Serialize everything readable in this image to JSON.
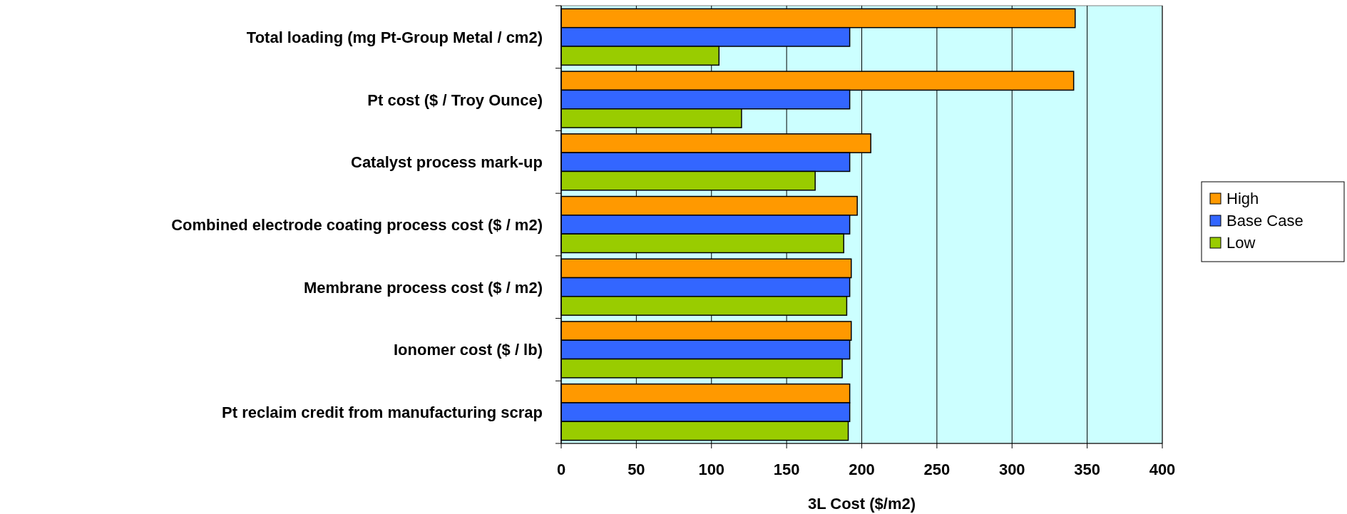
{
  "chart_data": {
    "type": "bar",
    "orientation": "horizontal",
    "xlabel": "3L Cost ($/m2)",
    "categories": [
      "Total loading (mg Pt-Group Metal / cm2)",
      "Pt cost ($ / Troy Ounce)",
      "Catalyst process mark-up",
      "Combined electrode coating process cost ($ / m2)",
      "Membrane process cost ($ / m2)",
      "Ionomer cost ($ / lb)",
      "Pt reclaim credit from manufacturing scrap"
    ],
    "series": [
      {
        "name": "High",
        "color": "#ff9900",
        "values": [
          342,
          341,
          206,
          197,
          193,
          193,
          192
        ]
      },
      {
        "name": "Base Case",
        "color": "#3366ff",
        "values": [
          192,
          192,
          192,
          192,
          192,
          192,
          192
        ]
      },
      {
        "name": "Low",
        "color": "#99cc00",
        "values": [
          105,
          120,
          169,
          188,
          190,
          187,
          191
        ]
      }
    ],
    "xlim": [
      0,
      400
    ],
    "xticks": [
      0,
      50,
      100,
      150,
      200,
      250,
      300,
      350,
      400
    ],
    "grid": "x",
    "legend": "right"
  }
}
